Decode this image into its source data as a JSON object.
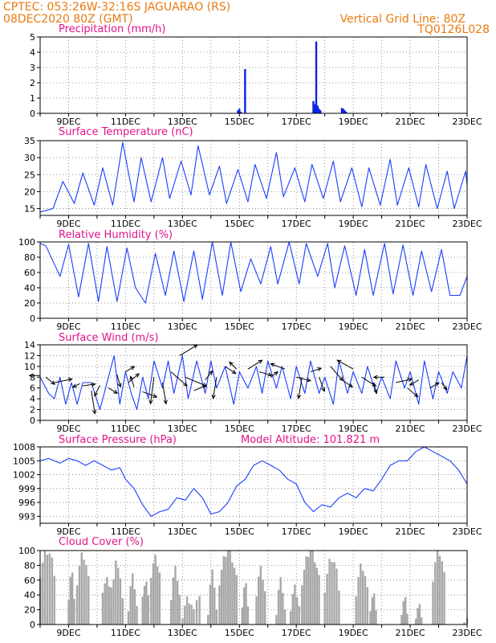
{
  "header": {
    "line1_left": "CPTEC:   053:26W-32:16S   JAGUARAO (RS)",
    "line2_left": "08DEC2020 80Z (GMT)",
    "line1_right": "Vertical Grid Line: 80Z",
    "line2_right": "TQ0126L028"
  },
  "colors": {
    "line": "#1a3cff",
    "bar": "#0a22e6",
    "cloud": "#a8a8a8",
    "header": "#e87b10",
    "title": "#e0148c"
  },
  "x_ticks": [
    "9DEC",
    "11DEC",
    "13DEC",
    "15DEC",
    "17DEC",
    "19DEC",
    "21DEC",
    "23DEC"
  ],
  "panels": [
    {
      "title": "Precipitation (mm/h)",
      "extra": "",
      "yticks": [
        "0",
        "1",
        "2",
        "3",
        "4",
        "5"
      ]
    },
    {
      "title": "Surface Temperature (nC)",
      "extra": "",
      "yticks": [
        "15",
        "20",
        "25",
        "30",
        "35"
      ]
    },
    {
      "title": "Relative Humidity (%)",
      "extra": "",
      "yticks": [
        "0",
        "20",
        "40",
        "60",
        "80",
        "100"
      ]
    },
    {
      "title": "Surface Wind (m/s)",
      "extra": "",
      "yticks": [
        "0",
        "2",
        "4",
        "6",
        "8",
        "10",
        "12",
        "14"
      ]
    },
    {
      "title": "Surface Pressure (hPa)",
      "extra": "Model Altitude: 101.821 m",
      "yticks": [
        "993",
        "996",
        "999",
        "1002",
        "1005",
        "1008"
      ]
    },
    {
      "title": "Cloud Cover (%)",
      "extra": "",
      "yticks": [
        "0",
        "20",
        "40",
        "60",
        "80",
        "100"
      ]
    }
  ],
  "chart_data": [
    {
      "type": "bar",
      "title": "Precipitation (mm/h)",
      "ylim": [
        0,
        5
      ],
      "x_unit": "days since 08DEC2020 00Z",
      "bars": [
        [
          6.95,
          0.2
        ],
        [
          7.0,
          0.3
        ],
        [
          7.05,
          0.1
        ],
        [
          7.2,
          2.9
        ],
        [
          9.6,
          0.8
        ],
        [
          9.65,
          0.6
        ],
        [
          9.7,
          4.7
        ],
        [
          9.75,
          0.5
        ],
        [
          9.8,
          0.3
        ],
        [
          9.85,
          0.2
        ],
        [
          10.6,
          0.35
        ],
        [
          10.65,
          0.3
        ],
        [
          10.7,
          0.2
        ],
        [
          10.75,
          0.1
        ],
        [
          12.2,
          0.05
        ],
        [
          13.1,
          0.05
        ]
      ]
    },
    {
      "type": "line",
      "title": "Surface Temperature (nC)",
      "ylim": [
        13,
        35
      ],
      "x": [
        0,
        0.45,
        0.8,
        1.2,
        1.5,
        1.9,
        2.2,
        2.55,
        2.9,
        3.3,
        3.55,
        3.9,
        4.3,
        4.55,
        4.95,
        5.3,
        5.55,
        5.95,
        6.3,
        6.55,
        6.95,
        7.3,
        7.55,
        7.95,
        8.3,
        8.55,
        8.95,
        9.3,
        9.55,
        9.95,
        10.3,
        10.55,
        10.95,
        11.3,
        11.55,
        11.95,
        12.3,
        12.55,
        12.95,
        13.3,
        13.55,
        13.95,
        14.3,
        14.55,
        14.95,
        15.0
      ],
      "y": [
        14,
        15,
        23,
        16.5,
        25.5,
        16,
        27,
        16,
        34.5,
        17,
        30,
        17,
        30,
        18,
        29,
        19,
        33.5,
        19,
        27.5,
        16.5,
        26.5,
        17,
        28,
        18,
        31.5,
        18.5,
        27,
        17,
        28,
        18,
        29,
        17,
        27,
        15.5,
        27,
        16,
        29.5,
        16,
        27,
        15.5,
        28,
        15,
        26,
        15,
        26,
        22
      ]
    },
    {
      "type": "line",
      "title": "Relative Humidity (%)",
      "ylim": [
        0,
        100
      ],
      "x": [
        0,
        0.2,
        0.7,
        1.0,
        1.35,
        1.7,
        2.05,
        2.35,
        2.7,
        3.05,
        3.35,
        3.7,
        4.05,
        4.4,
        4.7,
        5.05,
        5.4,
        5.7,
        6.05,
        6.4,
        6.7,
        7.05,
        7.4,
        7.75,
        8.1,
        8.35,
        8.75,
        9.1,
        9.35,
        9.75,
        10.1,
        10.35,
        10.7,
        11.1,
        11.4,
        11.7,
        12.1,
        12.4,
        12.75,
        13.1,
        13.4,
        13.75,
        14.1,
        14.4,
        14.75,
        15.0
      ],
      "y": [
        98,
        95,
        55,
        97,
        28,
        98,
        22,
        94,
        22,
        92,
        40,
        20,
        85,
        30,
        88,
        22,
        88,
        25,
        100,
        30,
        100,
        35,
        78,
        45,
        94,
        45,
        100,
        45,
        98,
        55,
        98,
        40,
        95,
        30,
        90,
        30,
        98,
        32,
        96,
        30,
        88,
        35,
        90,
        30,
        30,
        55
      ]
    },
    {
      "type": "line+vectors",
      "title": "Surface Wind (m/s)",
      "ylim": [
        0,
        14
      ],
      "x": [
        0,
        0.3,
        0.5,
        0.7,
        0.9,
        1.1,
        1.3,
        1.5,
        1.8,
        2.1,
        2.3,
        2.6,
        2.8,
        3.0,
        3.2,
        3.4,
        3.6,
        3.8,
        4.0,
        4.3,
        4.5,
        4.7,
        5.0,
        5.2,
        5.5,
        5.8,
        6.0,
        6.2,
        6.5,
        6.8,
        7.0,
        7.3,
        7.6,
        7.8,
        8.0,
        8.3,
        8.5,
        8.8,
        9.0,
        9.3,
        9.5,
        9.8,
        10.0,
        10.3,
        10.5,
        10.8,
        11.0,
        11.3,
        11.5,
        11.8,
        12.0,
        12.3,
        12.5,
        12.8,
        13.0,
        13.3,
        13.5,
        13.8,
        14.0,
        14.3,
        14.5,
        14.8,
        15.0
      ],
      "y": [
        8,
        5,
        4,
        8,
        3,
        7,
        3,
        7,
        7,
        2,
        6,
        12,
        3,
        9,
        5,
        2,
        8,
        4,
        11,
        6,
        11,
        5,
        12,
        4,
        11,
        5,
        11,
        6,
        10,
        3,
        9,
        6,
        10,
        5,
        11,
        6,
        10,
        4,
        10,
        5,
        11,
        5,
        8,
        3,
        11,
        5,
        9,
        5,
        10,
        5,
        8,
        4,
        11,
        6,
        9,
        3,
        11,
        4,
        9,
        5,
        9,
        6,
        12
      ]
    },
    {
      "type": "line",
      "title": "Surface Pressure (hPa)",
      "ylim": [
        991.5,
        1008
      ],
      "x": [
        0,
        0.3,
        0.7,
        1.0,
        1.3,
        1.6,
        1.9,
        2.2,
        2.5,
        2.8,
        3.0,
        3.3,
        3.6,
        3.9,
        4.2,
        4.5,
        4.8,
        5.1,
        5.4,
        5.7,
        6.0,
        6.3,
        6.6,
        6.9,
        7.2,
        7.5,
        7.8,
        8.1,
        8.4,
        8.7,
        9.0,
        9.3,
        9.6,
        9.9,
        10.2,
        10.5,
        10.8,
        11.1,
        11.4,
        11.7,
        12.0,
        12.3,
        12.6,
        12.9,
        13.2,
        13.5,
        13.8,
        14.1,
        14.4,
        14.7,
        15.0
      ],
      "y": [
        1005,
        1005.5,
        1004.5,
        1005.5,
        1005,
        1004,
        1005,
        1004,
        1003,
        1003.5,
        1001,
        999,
        995.5,
        993,
        994,
        994.5,
        997,
        996.5,
        999,
        997,
        993.5,
        994,
        996,
        999.5,
        1001,
        1004,
        1005,
        1004,
        1003,
        1001,
        1000,
        996,
        994,
        995.5,
        995,
        997,
        998,
        997,
        999,
        998.5,
        1001,
        1004,
        1005,
        1005,
        1007,
        1008,
        1007,
        1006,
        1005,
        1003,
        1000
      ]
    },
    {
      "type": "bar",
      "title": "Cloud Cover (%)",
      "ylim": [
        0,
        100
      ],
      "x_unit": "days since 08DEC2020 00Z",
      "cloud_segments": [
        [
          0,
          0.5,
          70,
          100
        ],
        [
          1.0,
          1.2,
          40,
          70
        ],
        [
          1.3,
          1.7,
          60,
          95
        ],
        [
          2.2,
          2.5,
          50,
          60
        ],
        [
          2.5,
          2.9,
          30,
          85
        ],
        [
          3.1,
          3.4,
          25,
          65
        ],
        [
          3.6,
          3.8,
          45,
          55
        ],
        [
          3.9,
          4.2,
          70,
          90
        ],
        [
          4.6,
          4.9,
          40,
          75
        ],
        [
          5.0,
          5.4,
          15,
          35
        ],
        [
          5.5,
          5.6,
          40,
          40
        ],
        [
          5.9,
          6.2,
          20,
          70
        ],
        [
          6.3,
          6.9,
          60,
          100
        ],
        [
          7.1,
          7.3,
          30,
          55
        ],
        [
          7.6,
          7.9,
          45,
          75
        ],
        [
          8.3,
          8.6,
          20,
          60
        ],
        [
          8.8,
          9.1,
          25,
          50
        ],
        [
          9.2,
          9.8,
          60,
          100
        ],
        [
          10.0,
          10.5,
          50,
          90
        ],
        [
          11.1,
          11.5,
          45,
          80
        ],
        [
          11.6,
          11.8,
          25,
          40
        ],
        [
          12.7,
          12.9,
          20,
          35
        ],
        [
          13.2,
          13.4,
          15,
          25
        ],
        [
          13.8,
          14.2,
          65,
          100
        ],
        [
          14.9,
          15.0,
          10,
          30
        ]
      ]
    }
  ]
}
